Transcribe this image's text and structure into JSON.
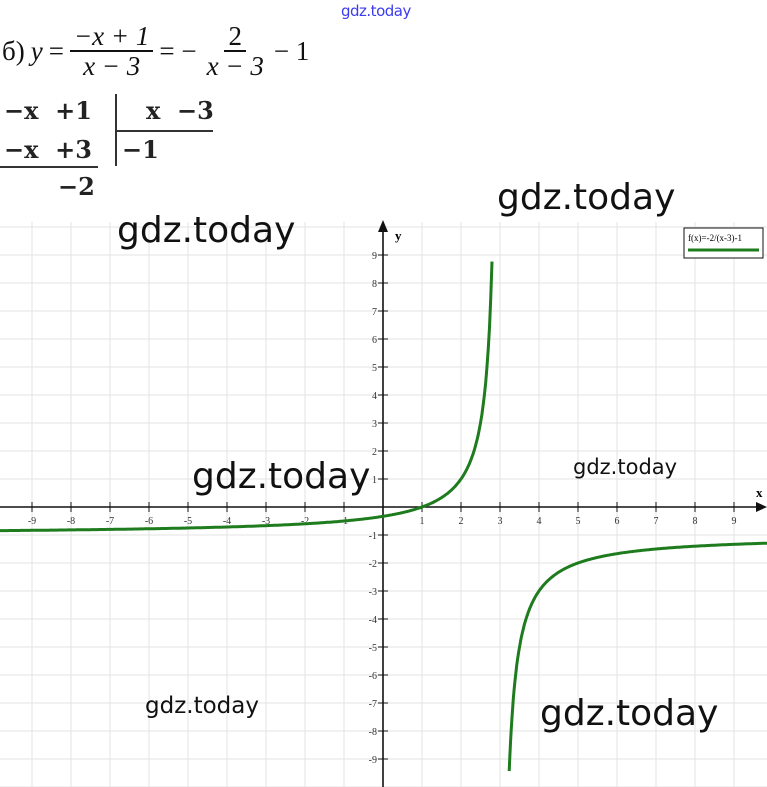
{
  "watermark_top": "gdz.today",
  "formula": {
    "prefix": "б)",
    "y": "y",
    "eq1": "=",
    "frac1_num": "−x + 1",
    "frac1_den": "x − 3",
    "eq2": "= −",
    "frac2_num": "2",
    "frac2_den": "x − 3",
    "tail": "− 1"
  },
  "long_division": {
    "dividend_row1": "−x  +1",
    "divisor": "x  −3",
    "dividend_row2": "−x  +3",
    "quotient": "−1",
    "remainder": "−2"
  },
  "watermarks": [
    "gdz.today",
    "gdz.today",
    "gdz.today",
    "gdz.today",
    "gdz.today",
    "gdz.today"
  ],
  "chart_data": {
    "type": "line",
    "function": "y = -2/(x-3) - 1",
    "legend": "f(x)=-2/(x-3)-1",
    "legend_placement": "top-right",
    "xlabel": "x",
    "ylabel": "y",
    "xlim": [
      -10,
      10
    ],
    "ylim": [
      -10,
      10
    ],
    "grid": true,
    "x_ticks": [
      "-9",
      "-8",
      "-7",
      "-6",
      "-5",
      "-4",
      "-3",
      "-2",
      "-1",
      "1",
      "2",
      "3",
      "4",
      "5",
      "6",
      "7",
      "8",
      "9"
    ],
    "y_ticks": [
      "9",
      "8",
      "7",
      "6",
      "5",
      "4",
      "3",
      "2",
      "1",
      "-1",
      "-2",
      "-3",
      "-4",
      "-5",
      "-6",
      "-7",
      "-8",
      "-9"
    ],
    "asymptotes": {
      "vertical": 3,
      "horizontal": -1
    },
    "series_color": "#1e7b1e"
  }
}
